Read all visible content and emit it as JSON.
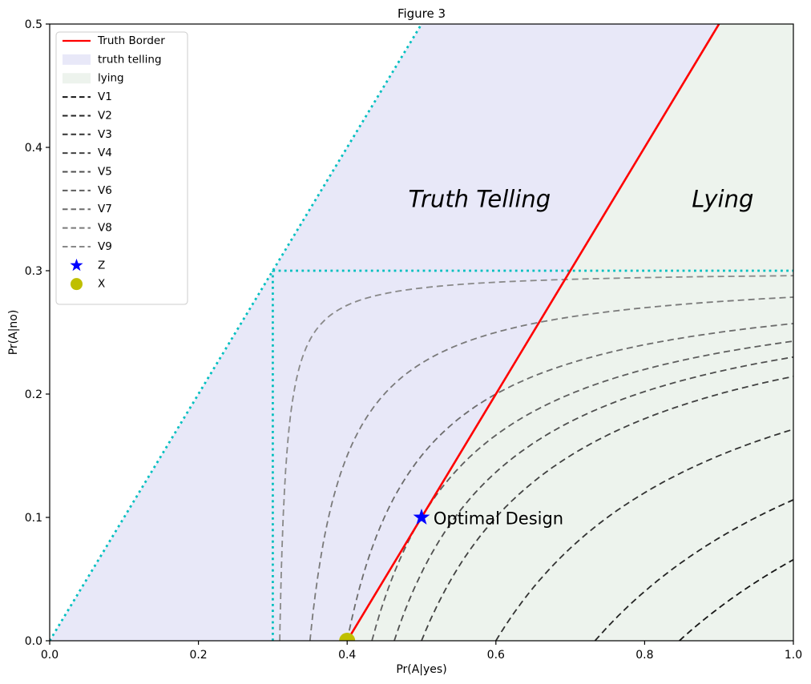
{
  "figure": {
    "title": "Figure 3",
    "background": "#ffffff"
  },
  "axes": {
    "xlabel": "Pr(A|yes)",
    "ylabel": "Pr(A|no)",
    "xlim": [
      0.0,
      1.0
    ],
    "ylim": [
      0.0,
      0.5
    ],
    "x_ticks": [
      {
        "value": 0.0,
        "label": "0.0"
      },
      {
        "value": 0.2,
        "label": "0.2"
      },
      {
        "value": 0.4,
        "label": "0.4"
      },
      {
        "value": 0.6,
        "label": "0.6"
      },
      {
        "value": 0.8,
        "label": "0.8"
      },
      {
        "value": 1.0,
        "label": "1.0"
      }
    ],
    "y_ticks": [
      {
        "value": 0.0,
        "label": "0.0"
      },
      {
        "value": 0.1,
        "label": "0.1"
      },
      {
        "value": 0.2,
        "label": "0.2"
      },
      {
        "value": 0.3,
        "label": "0.3"
      },
      {
        "value": 0.4,
        "label": "0.4"
      },
      {
        "value": 0.5,
        "label": "0.5"
      }
    ]
  },
  "chart_data": {
    "type": "line",
    "title": "Figure 3",
    "xlabel": "Pr(A|yes)",
    "ylabel": "Pr(A|no)",
    "xlim": [
      0.0,
      1.0
    ],
    "ylim": [
      0.0,
      0.5
    ],
    "grid": false,
    "legend_position": "upper left",
    "regions": [
      {
        "name": "truth telling",
        "color": "#e8e8f8",
        "polygon": [
          [
            0.0,
            0.0
          ],
          [
            0.5,
            0.5
          ],
          [
            0.9,
            0.5
          ],
          [
            0.4,
            0.0
          ]
        ]
      },
      {
        "name": "lying",
        "color": "#edf3ed",
        "polygon": [
          [
            0.4,
            0.0
          ],
          [
            0.9,
            0.5
          ],
          [
            1.0,
            0.5
          ],
          [
            1.0,
            0.0
          ]
        ]
      }
    ],
    "truth_border": {
      "name": "Truth Border",
      "color": "#ff0000",
      "from": [
        0.4,
        0.0
      ],
      "to": [
        0.9,
        0.5
      ],
      "equation": "y = x - 0.4"
    },
    "constraint_lines": {
      "color": "#00bfbf",
      "style": "dotted",
      "segments": [
        {
          "from": [
            0.0,
            0.0
          ],
          "to": [
            0.5,
            0.5
          ]
        },
        {
          "from": [
            0.3,
            0.3
          ],
          "to": [
            1.0,
            0.3
          ]
        },
        {
          "from": [
            0.3,
            0.0
          ],
          "to": [
            0.3,
            0.3
          ]
        }
      ]
    },
    "v_curves": {
      "style": "dashed",
      "equation": "(x - 0.3) * (0.3 - y) = k",
      "asymptotes": {
        "x": 0.3,
        "y": 0.3
      },
      "series": [
        {
          "name": "V1",
          "k": 0.164,
          "color": "#161616",
          "bottom_crossing_x": 0.847,
          "y_at_x1": 0.066
        },
        {
          "name": "V2",
          "k": 0.13,
          "color": "#242424",
          "bottom_crossing_x": 0.733,
          "y_at_x1": 0.114
        },
        {
          "name": "V3",
          "k": 0.09,
          "color": "#333333",
          "bottom_crossing_x": 0.6,
          "y_at_x1": 0.171
        },
        {
          "name": "V4",
          "k": 0.06,
          "color": "#414141",
          "bottom_crossing_x": 0.5,
          "y_at_x1": 0.214
        },
        {
          "name": "V5",
          "k": 0.049,
          "color": "#4f4f4f",
          "bottom_crossing_x": 0.463,
          "y_at_x1": 0.23
        },
        {
          "name": "V6",
          "k": 0.04,
          "color": "#5e5e5e",
          "bottom_crossing_x": 0.433,
          "y_at_x1": 0.243
        },
        {
          "name": "V7",
          "k": 0.03,
          "color": "#6c6c6c",
          "bottom_crossing_x": 0.4,
          "y_at_x1": 0.257
        },
        {
          "name": "V8",
          "k": 0.015,
          "color": "#7a7a7a",
          "bottom_crossing_x": 0.35,
          "y_at_x1": 0.279
        },
        {
          "name": "V9",
          "k": 0.0028,
          "color": "#898989",
          "bottom_crossing_x": 0.309,
          "y_at_x1": 0.296
        }
      ]
    },
    "markers": [
      {
        "name": "Z",
        "x": 0.5,
        "y": 0.1,
        "marker": "star",
        "color": "#0000ff"
      },
      {
        "name": "X",
        "x": 0.4,
        "y": 0.0,
        "marker": "circle",
        "color": "#bfbf00"
      }
    ],
    "annotations": [
      {
        "text": "Truth Telling",
        "x": 0.578,
        "y": 0.358,
        "italic": true,
        "size": 29,
        "color": "#000000",
        "anchor": "middle"
      },
      {
        "text": "Lying",
        "x": 0.905,
        "y": 0.358,
        "italic": true,
        "size": 29,
        "color": "#000000",
        "anchor": "middle"
      },
      {
        "text": "Optimal Design",
        "x": 0.516,
        "y": 0.099,
        "italic": false,
        "size": 21,
        "color": "#0000ff",
        "anchor": "start"
      }
    ]
  },
  "legend": {
    "items": [
      {
        "label": "Truth Border",
        "type": "line",
        "color": "#ff0000"
      },
      {
        "label": "truth telling",
        "type": "patch",
        "color": "#e8e8f8"
      },
      {
        "label": "lying",
        "type": "patch",
        "color": "#edf3ed"
      },
      {
        "label": "V1",
        "type": "dash",
        "color": "#161616"
      },
      {
        "label": "V2",
        "type": "dash",
        "color": "#242424"
      },
      {
        "label": "V3",
        "type": "dash",
        "color": "#333333"
      },
      {
        "label": "V4",
        "type": "dash",
        "color": "#414141"
      },
      {
        "label": "V5",
        "type": "dash",
        "color": "#4f4f4f"
      },
      {
        "label": "V6",
        "type": "dash",
        "color": "#5e5e5e"
      },
      {
        "label": "V7",
        "type": "dash",
        "color": "#6c6c6c"
      },
      {
        "label": "V8",
        "type": "dash",
        "color": "#7a7a7a"
      },
      {
        "label": "V9",
        "type": "dash",
        "color": "#898989"
      },
      {
        "label": "Z",
        "type": "star",
        "color": "#0000ff"
      },
      {
        "label": "X",
        "type": "circle",
        "color": "#bfbf00"
      }
    ]
  }
}
